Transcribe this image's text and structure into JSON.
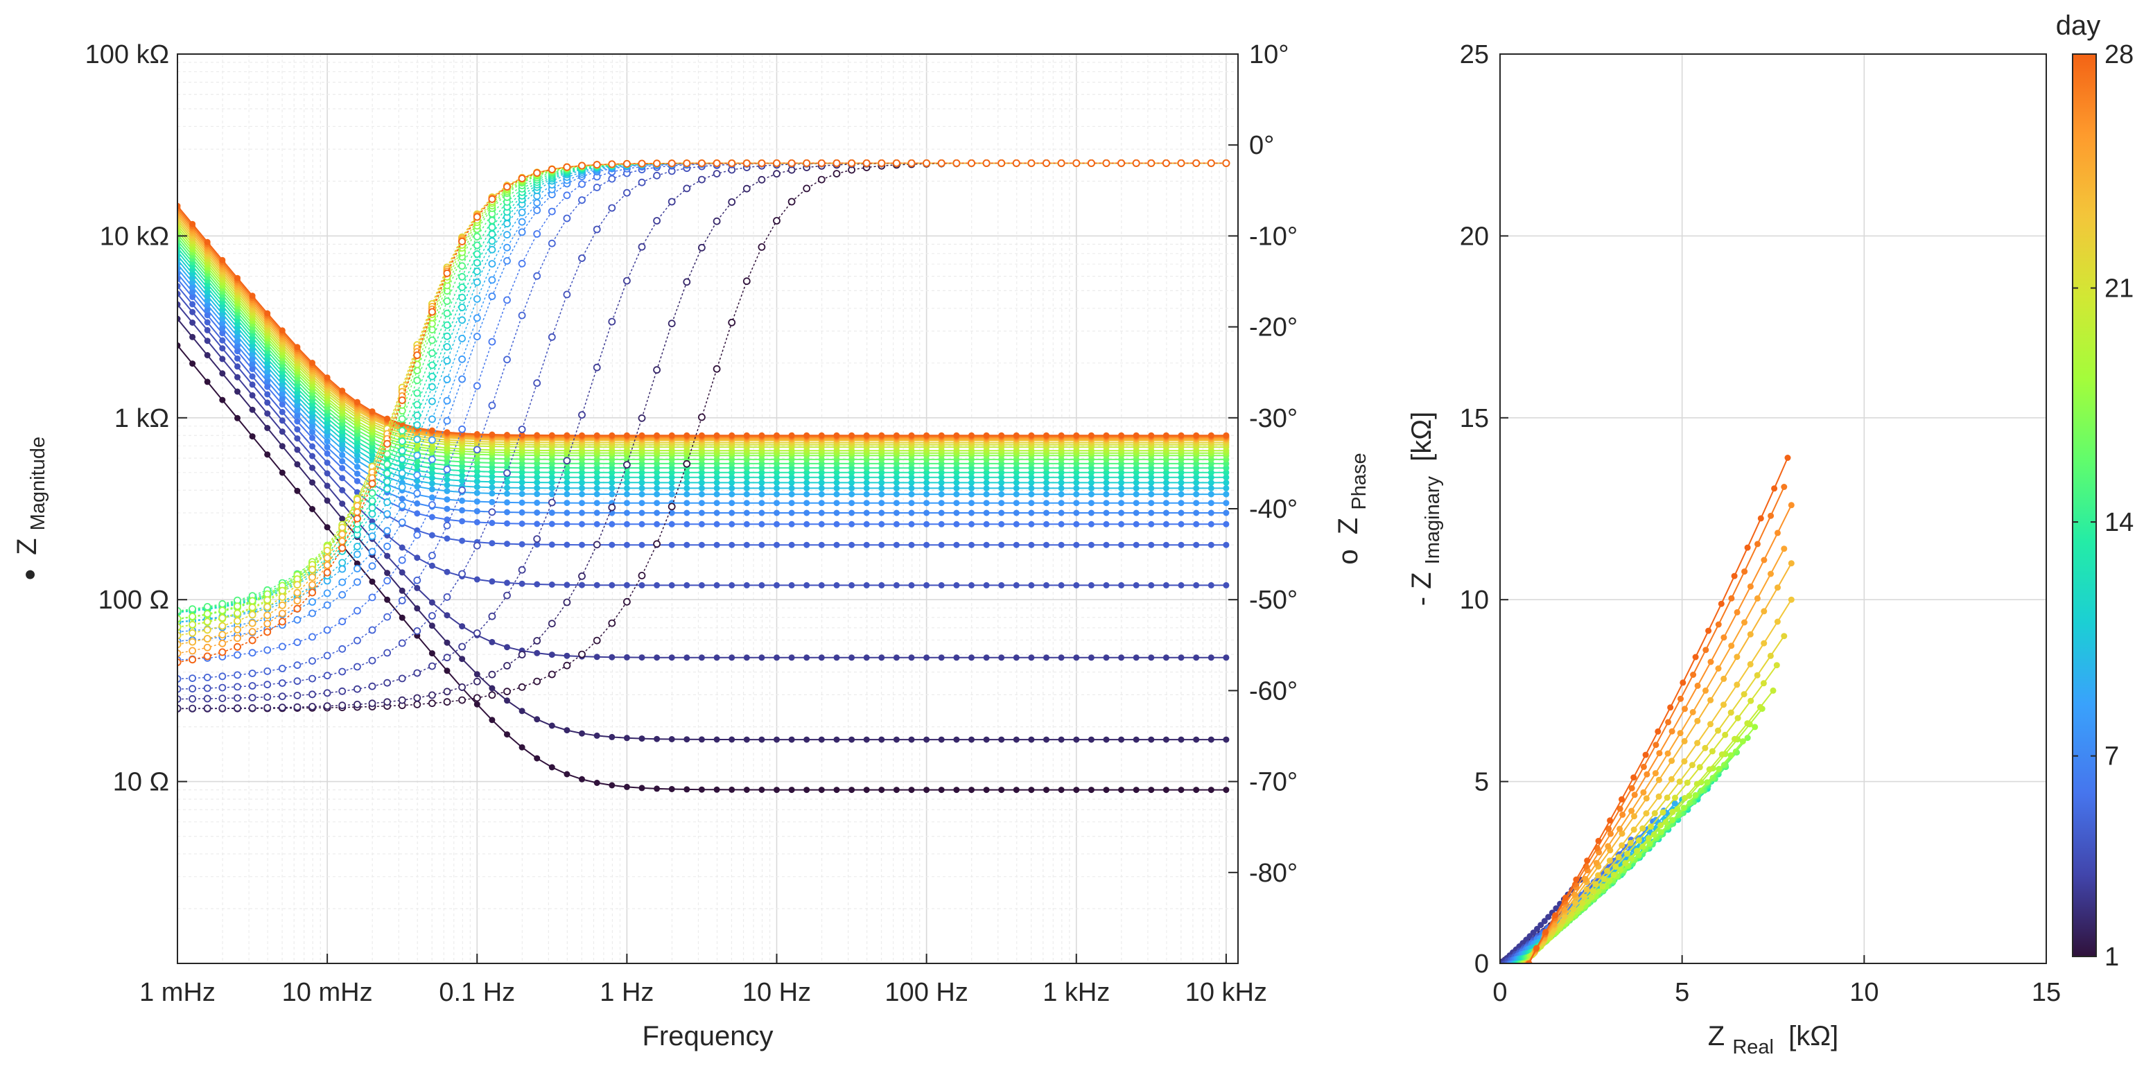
{
  "figure": {
    "left_ylabel_marker": "●",
    "left_ylabel_main": "Z",
    "left_ylabel_sub": "Magnitude",
    "right_ylabel_marker": "o",
    "right_ylabel_main": "Z",
    "right_ylabel_sub": "Phase",
    "colorbar_title": "day"
  },
  "colors": {
    "colormap": [
      "#30123b",
      "#4145ab",
      "#4675ed",
      "#39a2fc",
      "#1bcfd4",
      "#24eca6",
      "#61fc6c",
      "#a4fc3b",
      "#d1e834",
      "#f3c63a",
      "#fe9b2d",
      "#f36315"
    ],
    "axis": "#262626",
    "grid": "#d9d9d9"
  },
  "chart_data": [
    {
      "type": "line",
      "name": "bode",
      "xlabel": "Frequency",
      "x_scale": "log",
      "xlim": [
        0.001,
        12000
      ],
      "x_ticks": [
        0.001,
        0.01,
        0.1,
        1,
        10,
        100,
        1000,
        10000
      ],
      "x_tick_labels": [
        "1 mHz",
        "10 mHz",
        "0.1 Hz",
        "1 Hz",
        "10 Hz",
        "100 Hz",
        "1 kHz",
        "10 kHz"
      ],
      "y_left_scale": "log",
      "y_left_lim": [
        1,
        100000
      ],
      "y_left_ticks": [
        10,
        100,
        1000,
        10000,
        100000
      ],
      "y_left_tick_labels": [
        "10 Ω",
        "100 Ω",
        "1 kΩ",
        "10 kΩ",
        "100 kΩ"
      ],
      "y_right_lim": [
        -90,
        10
      ],
      "y_right_ticks": [
        10,
        0,
        -10,
        -20,
        -30,
        -40,
        -50,
        -60,
        -70,
        -80
      ],
      "y_right_tick_labels": [
        "10°",
        "0°",
        "-10°",
        "-20°",
        "-30°",
        "-40°",
        "-50°",
        "-60°",
        "-70°",
        "-80°"
      ],
      "magnitude_model": "|Z| = sqrt(R^2 + (1/(2*pi*f*C))^2), one curve per day",
      "phase_model": "phase (deg) = min + (top - min) * ((f/fc)^2/(1+(f/fc)^2))^(1/2), one curve per day, top ≈ -2",
      "days": [
        1,
        2,
        3,
        4,
        5,
        6,
        7,
        8,
        9,
        10,
        11,
        12,
        13,
        14,
        15,
        16,
        17,
        18,
        19,
        20,
        21,
        22,
        23,
        24,
        25,
        26,
        27,
        28
      ],
      "magnitude_high_freq_ohm": [
        9,
        17,
        48,
        120,
        200,
        260,
        300,
        340,
        380,
        410,
        440,
        470,
        500,
        530,
        560,
        590,
        620,
        640,
        660,
        690,
        710,
        730,
        750,
        760,
        770,
        780,
        790,
        800
      ],
      "magnitude_at_1mHz_ohm": [
        2500,
        3500,
        4200,
        4800,
        5300,
        5800,
        6200,
        6600,
        7000,
        7400,
        7800,
        8200,
        8600,
        9000,
        9400,
        9800,
        10200,
        10600,
        11000,
        11400,
        11800,
        12200,
        12600,
        13000,
        13400,
        13800,
        14200,
        14600
      ],
      "phase_min_deg": [
        -62,
        -62,
        -61,
        -60,
        -59,
        -57,
        -55,
        -54,
        -53,
        -53,
        -52,
        -52,
        -52,
        -52,
        -52,
        -53,
        -53,
        -53,
        -54,
        -54,
        -55,
        -55,
        -56,
        -56,
        -57,
        -58,
        -58,
        -58
      ],
      "phase_corner_freq_hz": [
        5,
        2,
        0.8,
        0.35,
        0.2,
        0.15,
        0.12,
        0.11,
        0.1,
        0.09,
        0.085,
        0.08,
        0.075,
        0.07,
        0.065,
        0.06,
        0.058,
        0.056,
        0.054,
        0.052,
        0.05,
        0.05,
        0.05,
        0.05,
        0.05,
        0.05,
        0.05,
        0.05
      ]
    },
    {
      "type": "line",
      "name": "nyquist",
      "xlabel_main": "Z",
      "xlabel_sub": "Real",
      "xlabel_unit": "[kΩ]",
      "ylabel_prefix": "- Z",
      "ylabel_sub": "Imaginary",
      "ylabel_unit": "[kΩ]",
      "xlim": [
        0,
        15
      ],
      "ylim": [
        0,
        25
      ],
      "x_ticks": [
        0,
        5,
        10,
        15
      ],
      "x_tick_labels": [
        "0",
        "5",
        "10",
        "15"
      ],
      "y_ticks": [
        0,
        5,
        10,
        15,
        20,
        25
      ],
      "y_tick_labels": [
        "0",
        "5",
        "10",
        "15",
        "20",
        "25"
      ],
      "curve_model": "one curve per day from (Z_Real at high f, 0) to end point, bending",
      "end_real_kohm": [
        2.0,
        2.5,
        2.2,
        3.1,
        3.3,
        3.6,
        4.2,
        4.5,
        4.8,
        5.0,
        5.5,
        5.7,
        5.8,
        6.0,
        6.2,
        6.5,
        6.8,
        7.0,
        7.2,
        7.5,
        7.6,
        7.8,
        8.0,
        8.0,
        7.8,
        8.0,
        7.8,
        7.9
      ],
      "end_imag_kohm": [
        1.6,
        2.0,
        2.3,
        2.7,
        3.0,
        3.4,
        3.9,
        4.2,
        4.4,
        4.5,
        4.7,
        4.8,
        5.0,
        5.2,
        5.4,
        5.8,
        6.2,
        6.5,
        7.0,
        7.5,
        8.2,
        9.0,
        10.0,
        11.0,
        11.4,
        12.6,
        13.1,
        13.9
      ]
    },
    {
      "type": "colorbar",
      "name": "colorbar",
      "title": "day",
      "lim": [
        1,
        28
      ],
      "ticks": [
        1,
        7,
        14,
        21,
        28
      ],
      "tick_labels": [
        "1",
        "7",
        "14",
        "21",
        "28"
      ]
    }
  ]
}
